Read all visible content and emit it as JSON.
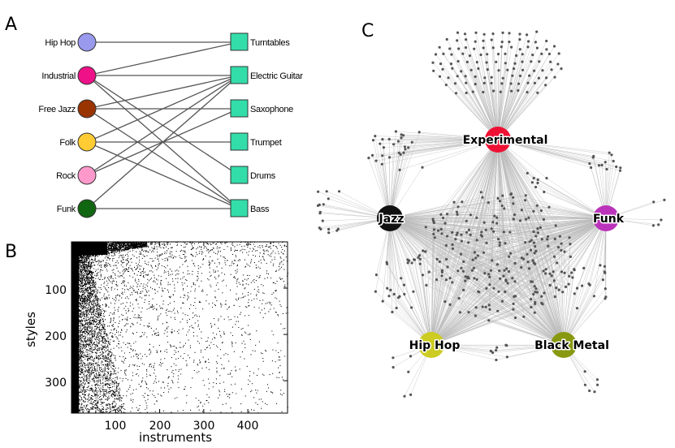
{
  "panels": {
    "a": "A",
    "b": "B",
    "c": "C"
  },
  "bipartite": {
    "styles": [
      {
        "label": "Hip Hop",
        "color": "#9999ee"
      },
      {
        "label": "Industrial",
        "color": "#ee1188"
      },
      {
        "label": "Free Jazz",
        "color": "#993300"
      },
      {
        "label": "Folk",
        "color": "#ffcc33"
      },
      {
        "label": "Rock",
        "color": "#ff99cc"
      },
      {
        "label": "Funk",
        "color": "#116611"
      }
    ],
    "instruments": [
      {
        "label": "Turntables"
      },
      {
        "label": "Electric Guitar"
      },
      {
        "label": "Saxophone"
      },
      {
        "label": "Trumpet"
      },
      {
        "label": "Drums"
      },
      {
        "label": "Bass"
      }
    ],
    "instrument_color": "#33ddaa",
    "edges": [
      [
        0,
        0
      ],
      [
        1,
        0
      ],
      [
        1,
        1
      ],
      [
        1,
        4
      ],
      [
        1,
        5
      ],
      [
        2,
        1
      ],
      [
        2,
        2
      ],
      [
        2,
        5
      ],
      [
        3,
        1
      ],
      [
        3,
        3
      ],
      [
        3,
        5
      ],
      [
        4,
        1
      ],
      [
        4,
        2
      ],
      [
        5,
        1
      ],
      [
        5,
        5
      ]
    ]
  },
  "scatter": {
    "xlabel": "instruments",
    "ylabel": "styles",
    "xticks": [
      "100",
      "200",
      "300",
      "400"
    ],
    "yticks": [
      "100",
      "200",
      "300"
    ],
    "xlim": [
      0,
      490
    ],
    "ylim": [
      0,
      370
    ],
    "xtick_values": [
      100,
      200,
      300,
      400
    ],
    "ytick_values": [
      100,
      200,
      300
    ]
  },
  "network": {
    "hubs": [
      {
        "label": "Experimental",
        "color": "#ee1133"
      },
      {
        "label": "Jazz",
        "color": "#111111"
      },
      {
        "label": "Funk",
        "color": "#bb33bb"
      },
      {
        "label": "Hip Hop",
        "color": "#cccc22"
      },
      {
        "label": "Black Metal",
        "color": "#889911"
      }
    ],
    "leaf_color": "#555555",
    "edge_color": "#bbbbbb"
  }
}
